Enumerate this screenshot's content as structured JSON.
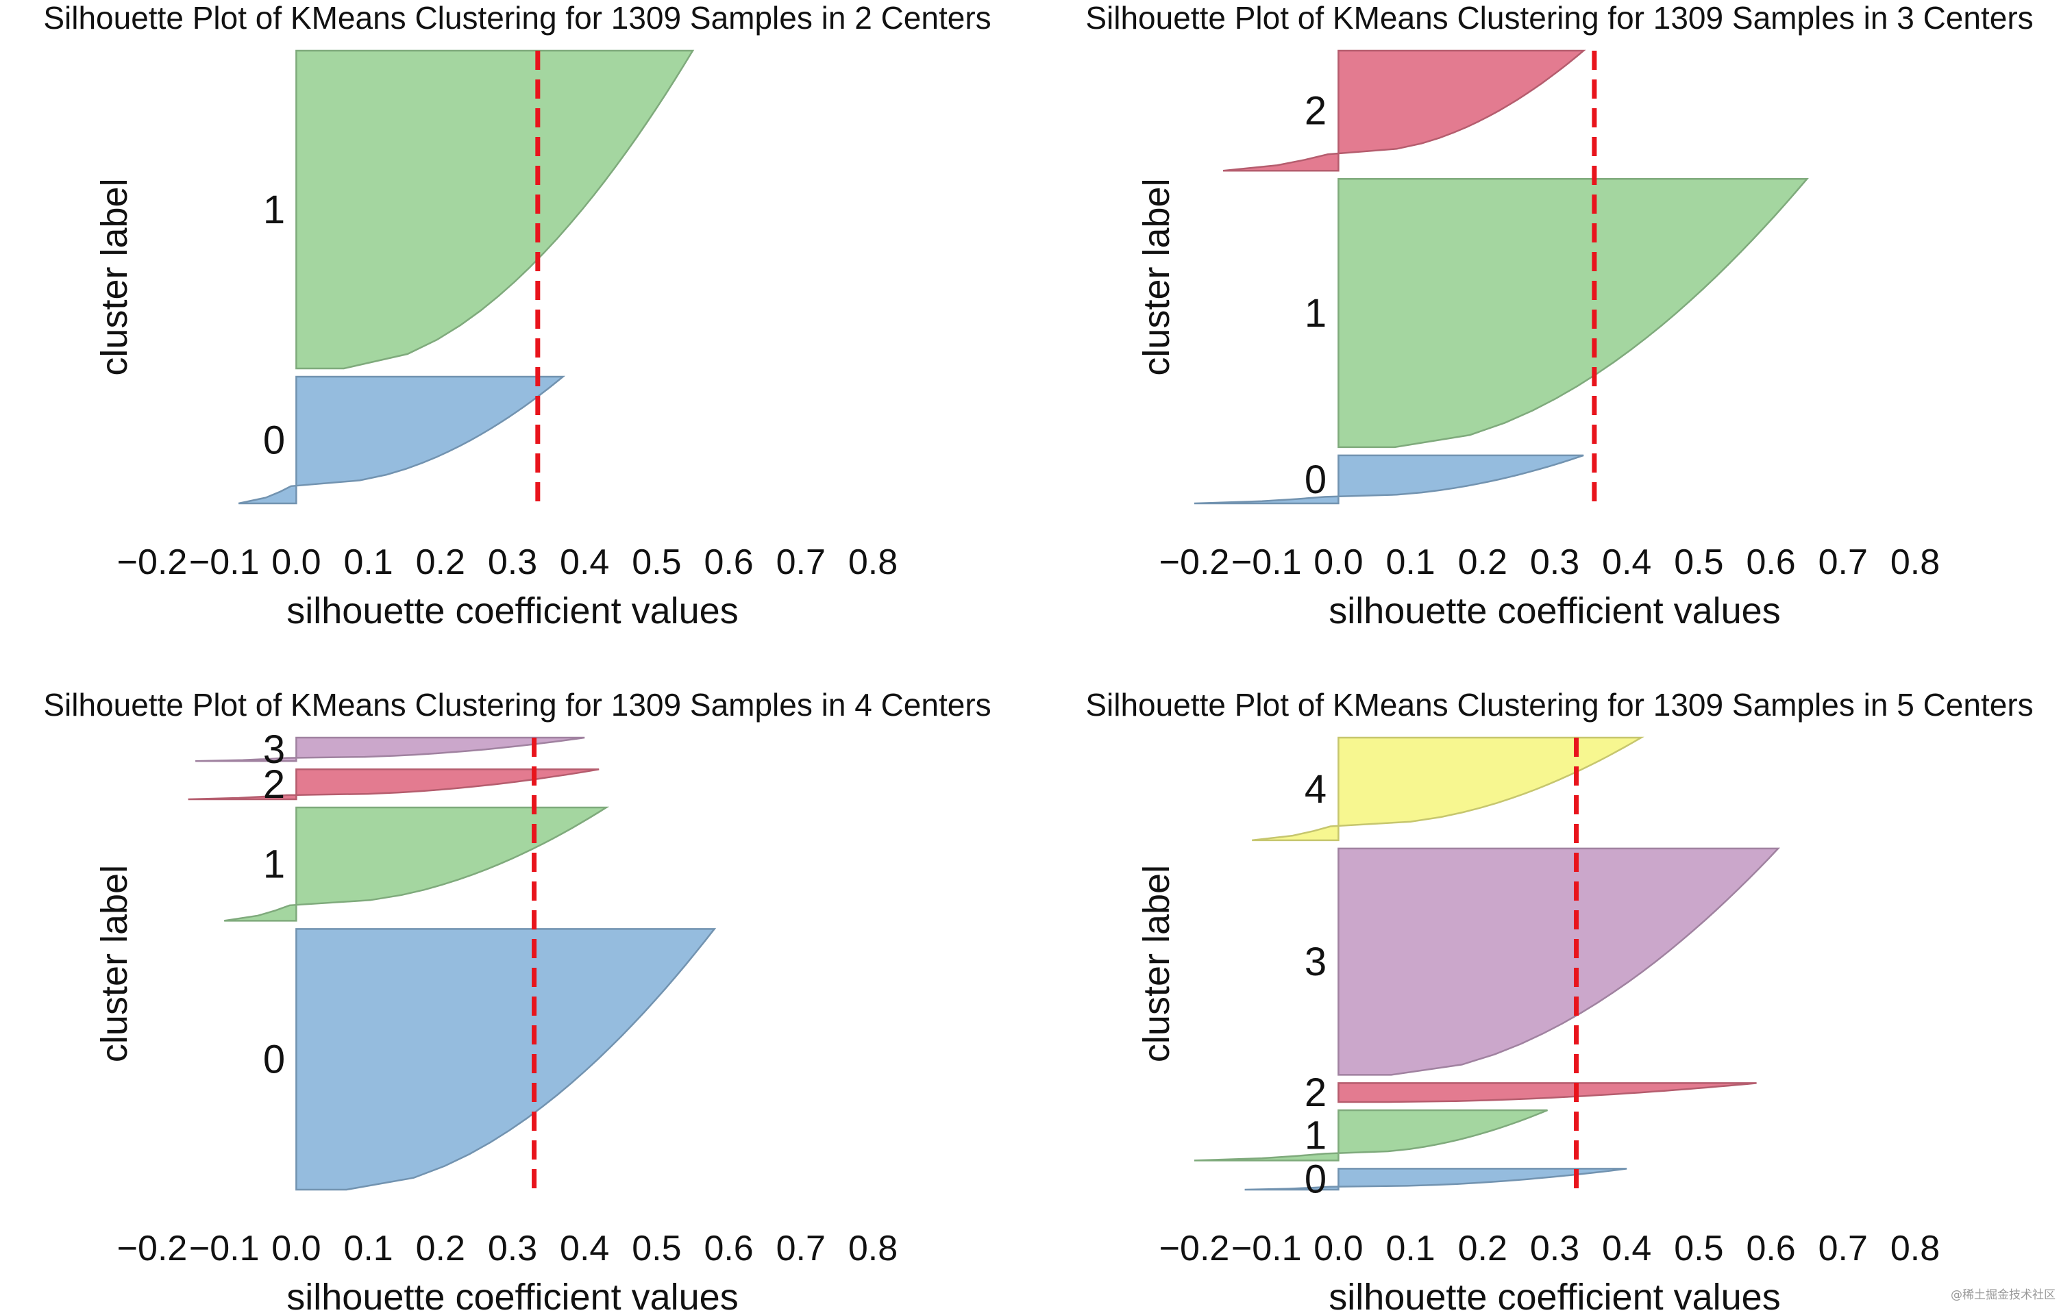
{
  "watermark": "@稀土掘金技术社区",
  "chart_data": [
    {
      "type": "silhouette",
      "title": "Silhouette Plot of KMeans Clustering for 1309 Samples in 2 Centers",
      "xlabel": "silhouette coefficient values",
      "ylabel": "cluster label",
      "xlim": [
        -0.2,
        0.8
      ],
      "xticks": [
        "−0.2",
        "−0.1",
        "0.0",
        "0.1",
        "0.2",
        "0.3",
        "0.4",
        "0.5",
        "0.6",
        "0.7",
        "0.8"
      ],
      "average_silhouette": 0.335,
      "clusters": [
        {
          "label": "0",
          "color": "#8fb8dc",
          "size": 0.285,
          "min": -0.08,
          "max": 0.37
        },
        {
          "label": "1",
          "color": "#9fd49b",
          "size": 0.715,
          "min": 0.0,
          "max": 0.55
        }
      ]
    },
    {
      "type": "silhouette",
      "title": "Silhouette Plot of KMeans Clustering for 1309 Samples in 3 Centers",
      "xlabel": "silhouette coefficient values",
      "ylabel": "cluster label",
      "xlim": [
        -0.2,
        0.8
      ],
      "xticks": [
        "−0.2",
        "−0.1",
        "0.0",
        "0.1",
        "0.2",
        "0.3",
        "0.4",
        "0.5",
        "0.6",
        "0.7",
        "0.8"
      ],
      "average_silhouette": 0.355,
      "clusters": [
        {
          "label": "0",
          "color": "#8fb8dc",
          "size": 0.11,
          "min": -0.2,
          "max": 0.34
        },
        {
          "label": "1",
          "color": "#9fd49b",
          "size": 0.615,
          "min": 0.0,
          "max": 0.65
        },
        {
          "label": "2",
          "color": "#e2748a",
          "size": 0.275,
          "min": -0.16,
          "max": 0.34
        }
      ]
    },
    {
      "type": "silhouette",
      "title": "Silhouette Plot of KMeans Clustering for 1309 Samples in 4 Centers",
      "xlabel": "silhouette coefficient values",
      "ylabel": "cluster label",
      "xlim": [
        -0.2,
        0.8
      ],
      "xticks": [
        "−0.2",
        "−0.1",
        "0.0",
        "0.1",
        "0.2",
        "0.3",
        "0.4",
        "0.5",
        "0.6",
        "0.7",
        "0.8"
      ],
      "average_silhouette": 0.33,
      "clusters": [
        {
          "label": "0",
          "color": "#8fb8dc",
          "size": 0.61,
          "min": 0.0,
          "max": 0.58
        },
        {
          "label": "1",
          "color": "#9fd49b",
          "size": 0.265,
          "min": -0.1,
          "max": 0.43
        },
        {
          "label": "2",
          "color": "#e2748a",
          "size": 0.07,
          "min": -0.15,
          "max": 0.42
        },
        {
          "label": "3",
          "color": "#c8a2c8",
          "size": 0.055,
          "min": -0.14,
          "max": 0.4
        }
      ]
    },
    {
      "type": "silhouette",
      "title": "Silhouette Plot of KMeans Clustering for 1309 Samples in 5 Centers",
      "xlabel": "silhouette coefficient values",
      "ylabel": "cluster label",
      "xlim": [
        -0.2,
        0.8
      ],
      "xticks": [
        "−0.2",
        "−0.1",
        "0.0",
        "0.1",
        "0.2",
        "0.3",
        "0.4",
        "0.5",
        "0.6",
        "0.7",
        "0.8"
      ],
      "average_silhouette": 0.33,
      "clusters": [
        {
          "label": "0",
          "color": "#8fb8dc",
          "size": 0.05,
          "min": -0.13,
          "max": 0.4
        },
        {
          "label": "1",
          "color": "#9fd49b",
          "size": 0.12,
          "min": -0.2,
          "max": 0.29
        },
        {
          "label": "2",
          "color": "#e2748a",
          "size": 0.045,
          "min": 0.0,
          "max": 0.58
        },
        {
          "label": "3",
          "color": "#c8a2c8",
          "size": 0.54,
          "min": 0.0,
          "max": 0.61
        },
        {
          "label": "4",
          "color": "#f7f78a",
          "size": 0.245,
          "min": -0.12,
          "max": 0.42
        }
      ]
    }
  ]
}
